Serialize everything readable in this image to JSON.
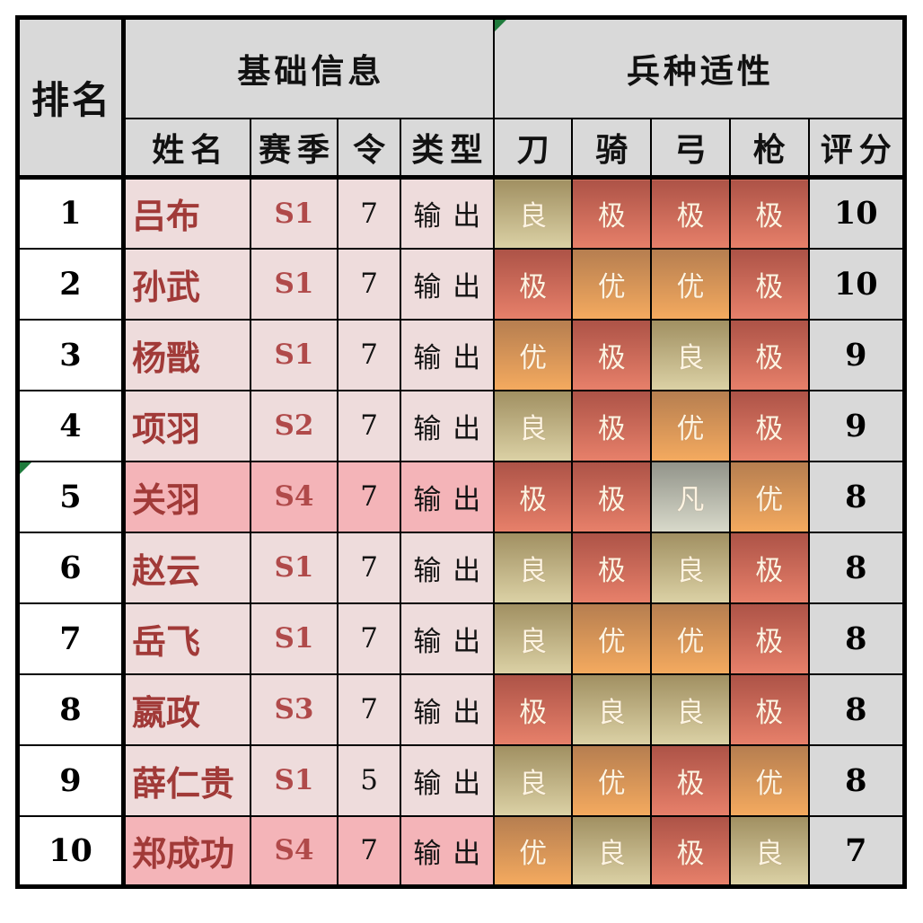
{
  "header": {
    "rank_label": "排名",
    "groups": [
      {
        "label": "基础信息",
        "columns": [
          "姓名",
          "赛季",
          "令",
          "类型"
        ]
      },
      {
        "label": "兵种适性",
        "flag_icon": "green-triangle-icon",
        "columns": [
          "刀",
          "骑",
          "弓",
          "枪",
          "评分"
        ]
      }
    ]
  },
  "rows": [
    {
      "rank": "1",
      "name": "吕布",
      "season": "S1",
      "ling": "7",
      "type": "输出",
      "apt": [
        "良",
        "极",
        "极",
        "极"
      ],
      "score": "10",
      "highlight": false,
      "flagged": false
    },
    {
      "rank": "2",
      "name": "孙武",
      "season": "S1",
      "ling": "7",
      "type": "输出",
      "apt": [
        "极",
        "优",
        "优",
        "极"
      ],
      "score": "10",
      "highlight": false,
      "flagged": false
    },
    {
      "rank": "3",
      "name": "杨戬",
      "season": "S1",
      "ling": "7",
      "type": "输出",
      "apt": [
        "优",
        "极",
        "良",
        "极"
      ],
      "score": "9",
      "highlight": false,
      "flagged": false
    },
    {
      "rank": "4",
      "name": "项羽",
      "season": "S2",
      "ling": "7",
      "type": "输出",
      "apt": [
        "良",
        "极",
        "优",
        "极"
      ],
      "score": "9",
      "highlight": false,
      "flagged": false
    },
    {
      "rank": "5",
      "name": "关羽",
      "season": "S4",
      "ling": "7",
      "type": "输出",
      "apt": [
        "极",
        "极",
        "凡",
        "优"
      ],
      "score": "8",
      "highlight": true,
      "flagged": true
    },
    {
      "rank": "6",
      "name": "赵云",
      "season": "S1",
      "ling": "7",
      "type": "输出",
      "apt": [
        "良",
        "极",
        "良",
        "极"
      ],
      "score": "8",
      "highlight": false,
      "flagged": false
    },
    {
      "rank": "7",
      "name": "岳飞",
      "season": "S1",
      "ling": "7",
      "type": "输出",
      "apt": [
        "良",
        "优",
        "优",
        "极"
      ],
      "score": "8",
      "highlight": false,
      "flagged": false
    },
    {
      "rank": "8",
      "name": "嬴政",
      "season": "S3",
      "ling": "7",
      "type": "输出",
      "apt": [
        "极",
        "良",
        "良",
        "极"
      ],
      "score": "8",
      "highlight": false,
      "flagged": false
    },
    {
      "rank": "9",
      "name": "薛仁贵",
      "season": "S1",
      "ling": "5",
      "type": "输出",
      "apt": [
        "良",
        "优",
        "极",
        "优"
      ],
      "score": "8",
      "highlight": false,
      "flagged": false
    },
    {
      "rank": "10",
      "name": "郑成功",
      "season": "S4",
      "ling": "7",
      "type": "输出",
      "apt": [
        "优",
        "良",
        "极",
        "良"
      ],
      "score": "7",
      "highlight": true,
      "flagged": false
    }
  ],
  "grade_styles": {
    "极": {
      "top": "#ad5347",
      "bottom": "#e7806a"
    },
    "优": {
      "top": "#b67e50",
      "bottom": "#f4aa5f"
    },
    "良": {
      "top": "#a19062",
      "bottom": "#dbd1a5"
    },
    "凡": {
      "top": "#92948a",
      "bottom": "#d8d9ca"
    }
  },
  "colors": {
    "header_bg": "#d9d9d9",
    "score_bg": "#d9d9d9",
    "rank_bg": "#ffffff",
    "info_bg": "#eedcdc",
    "info_bg_highlight": "#f4b4b8",
    "name_text": "#a13a38",
    "season_text": "#b04a4a",
    "aptitude_text": "#fdf4e2",
    "border": "#000000",
    "flag_green": "#1f7b3c"
  }
}
